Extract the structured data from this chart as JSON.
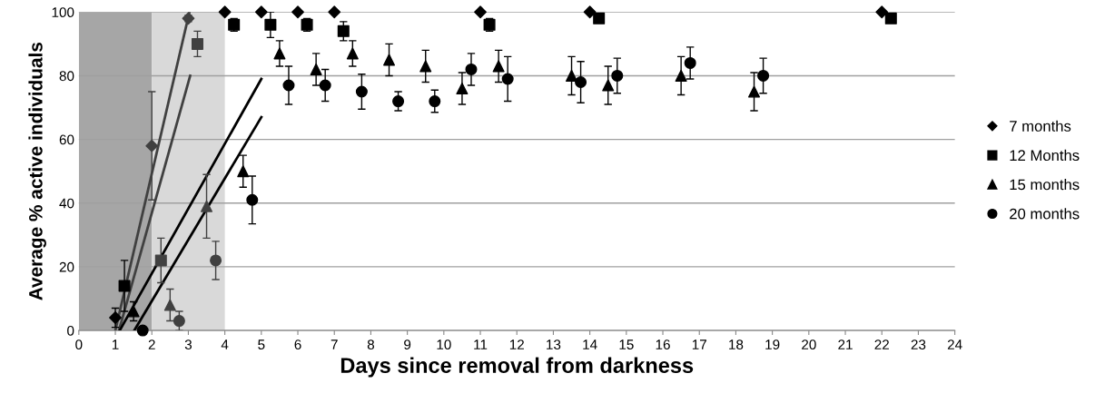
{
  "chart_data": {
    "type": "scatter",
    "xlabel": "Days since removal from darkness",
    "ylabel": "Average % active individuals",
    "xlim": [
      0,
      24
    ],
    "xticks": [
      0,
      1,
      2,
      3,
      4,
      5,
      6,
      7,
      8,
      9,
      10,
      11,
      12,
      13,
      14,
      15,
      16,
      17,
      18,
      19,
      20,
      21,
      22,
      23,
      24
    ],
    "ylim": [
      0,
      100
    ],
    "yticks": [
      0,
      20,
      40,
      60,
      80,
      100
    ],
    "grid": "y",
    "legend": "right",
    "bands": [
      {
        "axis": "x",
        "from": 0,
        "to": 2,
        "label": null,
        "color": "#a6a6a6"
      },
      {
        "axis": "x",
        "from": 2,
        "to": 4,
        "label": null,
        "color": "#d9d9d9"
      }
    ],
    "series": [
      {
        "type": "line",
        "x": [
          1.0,
          3.03
        ],
        "values": [
          0,
          100
        ],
        "color": "#404040",
        "marker": "none"
      },
      {
        "type": "line",
        "x": [
          1.1,
          3.05
        ],
        "values": [
          0,
          80
        ],
        "color": "#404040",
        "marker": "none"
      },
      {
        "type": "line",
        "x": [
          1.12,
          5.0
        ],
        "values": [
          0,
          79
        ],
        "color": "#000000",
        "marker": "none"
      },
      {
        "type": "line",
        "x": [
          1.52,
          5.0
        ],
        "values": [
          0,
          67
        ],
        "color": "#000000",
        "marker": "none"
      },
      {
        "name": "7 months",
        "marker": "diamond",
        "color": "#000000",
        "x": [
          1,
          2,
          3,
          4,
          5,
          6,
          7,
          11,
          14,
          22
        ],
        "values": [
          4,
          58,
          98,
          100,
          100,
          100,
          100,
          100,
          100,
          100
        ],
        "errors": [
          3,
          17,
          1,
          null,
          null,
          null,
          null,
          null,
          null,
          null
        ],
        "colors": [
          "#000000",
          "#404040",
          "#404040",
          "#000000",
          "#000000",
          "#000000",
          "#000000",
          "#000000",
          "#000000",
          "#000000"
        ]
      },
      {
        "name": "12 Months",
        "marker": "square",
        "color": "#000000",
        "x": [
          1.25,
          2.25,
          3.25,
          4.25,
          5.25,
          6.25,
          7.25,
          11.25,
          14.25,
          22.25
        ],
        "values": [
          14,
          22,
          90,
          96,
          96,
          96,
          94,
          96,
          98,
          98
        ],
        "errors": [
          8,
          7,
          4,
          2,
          4,
          2,
          3,
          2,
          null,
          null
        ],
        "colors": [
          "#000000",
          "#404040",
          "#404040",
          "#000000",
          "#000000",
          "#000000",
          "#000000",
          "#000000",
          "#000000",
          "#000000"
        ]
      },
      {
        "name": "15 months",
        "marker": "triangle",
        "color": "#000000",
        "x": [
          1.5,
          2.5,
          3.5,
          4.5,
          5.5,
          6.5,
          7.5,
          8.5,
          9.5,
          10.5,
          11.5,
          13.5,
          14.5,
          16.5,
          18.5
        ],
        "values": [
          6,
          8,
          39,
          50,
          87,
          82,
          87,
          85,
          83,
          76,
          83,
          80,
          77,
          80,
          75
        ],
        "errors": [
          3,
          5,
          10,
          5,
          4,
          5,
          4,
          5,
          5,
          5,
          5,
          6,
          6,
          6,
          6
        ],
        "colors": [
          "#000000",
          "#404040",
          "#404040",
          "#000000",
          "#000000",
          "#000000",
          "#000000",
          "#000000",
          "#000000",
          "#000000",
          "#000000",
          "#000000",
          "#000000",
          "#000000",
          "#000000"
        ]
      },
      {
        "name": "20 months",
        "marker": "circle",
        "color": "#000000",
        "x": [
          1.75,
          2.75,
          3.75,
          4.75,
          5.75,
          6.75,
          7.75,
          8.75,
          9.75,
          10.75,
          11.75,
          13.75,
          14.75,
          16.75,
          18.75
        ],
        "values": [
          0,
          3,
          22,
          41,
          77,
          77,
          75,
          72,
          72,
          82,
          79,
          78,
          80,
          84,
          80
        ],
        "errors": [
          null,
          3,
          6,
          7.5,
          6,
          5,
          5.5,
          3,
          3.5,
          5,
          7,
          6.5,
          5.5,
          5,
          5.5
        ],
        "colors": [
          "#000000",
          "#404040",
          "#404040",
          "#000000",
          "#000000",
          "#000000",
          "#000000",
          "#000000",
          "#000000",
          "#000000",
          "#000000",
          "#000000",
          "#000000",
          "#000000",
          "#000000"
        ]
      }
    ]
  }
}
